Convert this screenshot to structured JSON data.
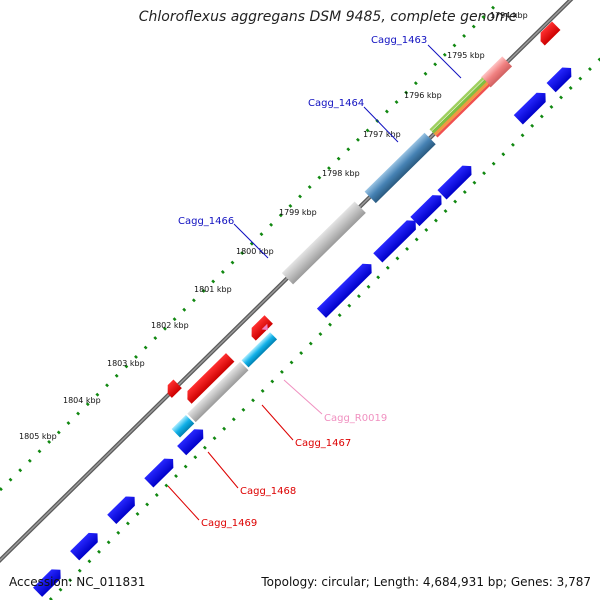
{
  "title": "Chloroflexus aggregans DSM 9485, complete genome",
  "footer": {
    "accession": "Accession: NC_011831",
    "summary": "Topology: circular; Length: 4,684,931 bp; Genes: 3,787"
  },
  "kbp_labels": [
    "1794 kbp",
    "1795 kbp",
    "1796 kbp",
    "1797 kbp",
    "1798 kbp",
    "1799 kbp",
    "1800 kbp",
    "1801 kbp",
    "1802 kbp",
    "1803 kbp",
    "1804 kbp",
    "1805 kbp"
  ],
  "gene_labels": [
    {
      "text": "Cagg_1463",
      "color": "#1010c0"
    },
    {
      "text": "Cagg_1464",
      "color": "#1010c0"
    },
    {
      "text": "Cagg_1466",
      "color": "#1010c0"
    },
    {
      "text": "Cagg_R0019",
      "color": "#f090c0"
    },
    {
      "text": "Cagg_1467",
      "color": "#dd0000"
    },
    {
      "text": "Cagg_1468",
      "color": "#dd0000"
    },
    {
      "text": "Cagg_1469",
      "color": "#dd0000"
    }
  ],
  "colors": {
    "forward_cds": "#0000ee",
    "reverse_cds": "#ee0000",
    "backbone": "#777777",
    "ticks": "#008000",
    "grey_feature": "#c4c4c4",
    "steelblue_feature": "#4682b4",
    "cyan_feature": "#00aadd",
    "pink_feature": "#f08080"
  }
}
